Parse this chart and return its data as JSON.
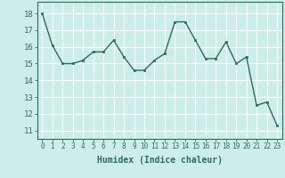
{
  "x": [
    0,
    1,
    2,
    3,
    4,
    5,
    6,
    7,
    8,
    9,
    10,
    11,
    12,
    13,
    14,
    15,
    16,
    17,
    18,
    19,
    20,
    21,
    22,
    23
  ],
  "y": [
    18,
    16.1,
    15.0,
    15.0,
    15.2,
    15.7,
    15.7,
    16.4,
    15.4,
    14.6,
    14.6,
    15.2,
    15.6,
    17.5,
    17.5,
    16.4,
    15.3,
    15.3,
    16.3,
    15.0,
    15.4,
    12.5,
    12.7,
    11.3
  ],
  "line_color": "#2e6b5e",
  "marker_color": "#2e6b5e",
  "bg_color": "#cceee8",
  "grid_color": "#ffffff",
  "xlabel": "Humidex (Indice chaleur)",
  "xlabel_fontsize": 7,
  "ytick_min": 11,
  "ytick_max": 18,
  "ytick_step": 1,
  "xlim": [
    -0.5,
    23.5
  ],
  "ylim": [
    10.5,
    18.7
  ]
}
